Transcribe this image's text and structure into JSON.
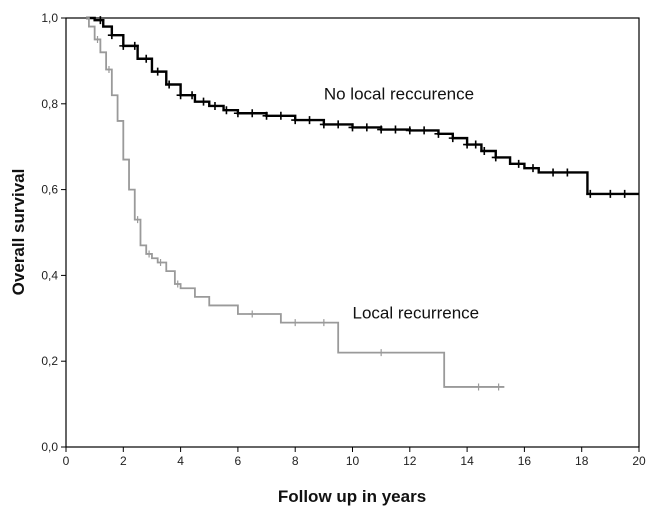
{
  "chart_data": {
    "type": "line",
    "title": "",
    "xlabel": "Follow up in years",
    "ylabel": "Overall survival",
    "xlim": [
      0,
      20
    ],
    "ylim": [
      0,
      1
    ],
    "grid": false,
    "x_ticks": [
      0,
      2,
      4,
      6,
      8,
      10,
      12,
      14,
      16,
      18,
      20
    ],
    "x_tick_labels": [
      "0",
      "2",
      "4",
      "6",
      "8",
      "10",
      "12",
      "14",
      "16",
      "18",
      "20"
    ],
    "y_ticks": [
      0,
      0.2,
      0.4,
      0.6,
      0.8,
      1.0
    ],
    "y_tick_labels": [
      "0,0",
      "0,2",
      "0,4",
      "0,6",
      "0,8",
      "1,0"
    ],
    "series": [
      {
        "name": "No local reccurence",
        "color": "#000000",
        "label_at": [
          9,
          0.81
        ],
        "x": [
          0.7,
          1.0,
          1.3,
          1.6,
          2.0,
          2.5,
          3.0,
          3.5,
          4.0,
          4.5,
          5.0,
          5.5,
          6.0,
          7.0,
          8.0,
          9.0,
          10.0,
          11.0,
          12.0,
          13.0,
          13.5,
          14.0,
          14.5,
          15.0,
          15.5,
          16.0,
          16.5,
          17.0,
          18.0,
          18.2,
          20.0
        ],
        "y": [
          1.0,
          0.995,
          0.98,
          0.96,
          0.935,
          0.905,
          0.875,
          0.845,
          0.82,
          0.805,
          0.795,
          0.785,
          0.778,
          0.772,
          0.762,
          0.752,
          0.745,
          0.74,
          0.738,
          0.73,
          0.72,
          0.705,
          0.69,
          0.675,
          0.66,
          0.65,
          0.64,
          0.64,
          0.64,
          0.59,
          0.59
        ],
        "censor_x": [
          1.2,
          1.6,
          2.0,
          2.4,
          2.8,
          3.2,
          3.6,
          4.0,
          4.4,
          4.8,
          5.2,
          5.6,
          6.0,
          6.5,
          7.0,
          7.5,
          8.0,
          8.5,
          9.0,
          9.5,
          10.0,
          10.5,
          11.0,
          11.5,
          12.0,
          12.5,
          13.0,
          13.5,
          14.0,
          14.3,
          14.6,
          15.0,
          15.8,
          16.3,
          17.0,
          17.5,
          18.3,
          19.0,
          19.5
        ]
      },
      {
        "name": "Local recurrence",
        "color": "#9a9a9a",
        "label_at": [
          10,
          0.3
        ],
        "x": [
          0.7,
          0.8,
          1.0,
          1.2,
          1.4,
          1.6,
          1.8,
          2.0,
          2.2,
          2.4,
          2.6,
          2.8,
          3.0,
          3.2,
          3.5,
          3.8,
          4.0,
          4.5,
          5.0,
          6.0,
          7.5,
          9.5,
          13.2,
          15.3
        ],
        "y": [
          1.0,
          0.98,
          0.95,
          0.92,
          0.88,
          0.82,
          0.76,
          0.67,
          0.6,
          0.53,
          0.47,
          0.45,
          0.44,
          0.43,
          0.41,
          0.38,
          0.37,
          0.35,
          0.33,
          0.31,
          0.29,
          0.22,
          0.14,
          0.14
        ],
        "censor_x": [
          1.1,
          1.5,
          2.5,
          2.9,
          3.3,
          3.9,
          6.5,
          8.0,
          9.0,
          11.0,
          14.4,
          15.1
        ]
      }
    ]
  }
}
